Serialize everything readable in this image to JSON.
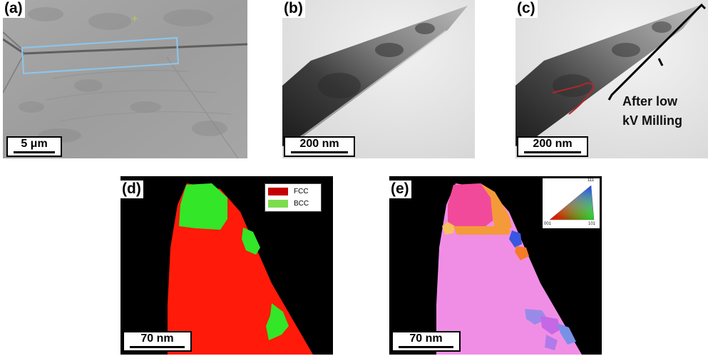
{
  "panels": [
    {
      "id": "a",
      "label": "(a)",
      "scale_bar": "5 μm"
    },
    {
      "id": "b",
      "label": "(b)",
      "scale_bar": "200 nm"
    },
    {
      "id": "c",
      "label": "(c)",
      "scale_bar": "200 nm",
      "annotation_line1": "After low",
      "annotation_line2": "kV Milling"
    },
    {
      "id": "d",
      "label": "(d)",
      "scale_bar": "70 nm",
      "legend": [
        {
          "name": "FCC",
          "color": "#c40000"
        },
        {
          "name": "BCC",
          "color": "#7ddc4e"
        }
      ]
    },
    {
      "id": "e",
      "label": "(e)",
      "scale_bar": "70 nm",
      "ipf_labels": {
        "top": "111",
        "left": "001",
        "right": "101"
      }
    }
  ],
  "colors": {
    "fcc_phase": "#ff1a0a",
    "bcc_phase": "#33e627",
    "box_outline": "#8ec4ea",
    "annotation_curve": "#b3262a",
    "ipf_pink": "#f08ee6",
    "ipf_magenta": "#f24a9a",
    "ipf_orange": "#f59a3a",
    "ipf_blue": "#3a56e0"
  }
}
